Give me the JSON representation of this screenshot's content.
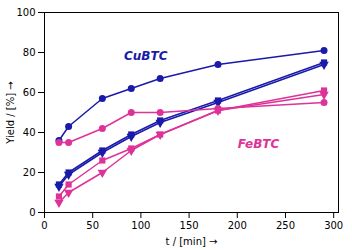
{
  "chart_data": {
    "type": "line",
    "xlabel": "t / [min]",
    "ylabel": "Yield / [%]",
    "xlim": [
      0,
      305
    ],
    "ylim": [
      0,
      100
    ],
    "xticks": [
      0,
      50,
      100,
      150,
      200,
      250,
      300
    ],
    "yticks": [
      0,
      20,
      40,
      60,
      80,
      100
    ],
    "grid": false,
    "x": [
      15,
      25,
      60,
      90,
      120,
      180,
      290
    ],
    "series": [
      {
        "color": "#1a1aaa",
        "marker": "circle",
        "values": [
          36,
          43,
          57,
          62,
          67,
          74,
          81
        ]
      },
      {
        "color": "#1a1aaa",
        "marker": "square",
        "values": [
          14,
          20,
          31,
          39,
          46,
          56,
          75
        ]
      },
      {
        "color": "#1a1aaa",
        "marker": "triangle-down",
        "values": [
          13,
          19,
          30,
          38,
          45,
          55,
          74
        ]
      },
      {
        "color": "#dd3399",
        "marker": "circle",
        "values": [
          35,
          35,
          42,
          50,
          50,
          52,
          55
        ]
      },
      {
        "color": "#dd3399",
        "marker": "square",
        "values": [
          8,
          14,
          26,
          32,
          39,
          51,
          61
        ]
      },
      {
        "color": "#dd3399",
        "marker": "triangle-down",
        "values": [
          5,
          10,
          20,
          31,
          39,
          51,
          59
        ]
      }
    ],
    "annotations": [
      {
        "text": "CuBTC",
        "x": 105,
        "y": 78,
        "color": "#1a1aaa"
      },
      {
        "text": "FeBTC",
        "x": 222,
        "y": 34,
        "color": "#dd3399"
      }
    ]
  }
}
